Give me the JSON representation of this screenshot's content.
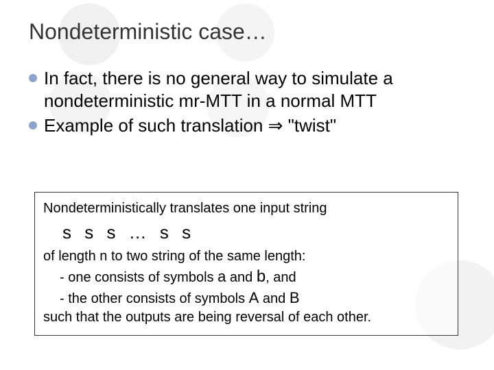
{
  "colors": {
    "background": "#ffffff",
    "deco_circle": "#f2f2f2",
    "bullet": "#8fa4cc",
    "title_text": "#333333",
    "body_text": "#000000",
    "box_border": "#333333"
  },
  "title": "Nondeterministic case…",
  "bullets": [
    "In fact, there is no general way to simulate a nondeterministic mr-MTT in a normal MTT",
    "Example of such translation ⇒ \"twist\""
  ],
  "box": {
    "line1": "Nondeterministically translates one input string",
    "string": "s s s … s s",
    "line2_pre": "of length n to two string of the same length:",
    "dash1_pre": "- one consists of symbols ",
    "sym_a": "a",
    "dash1_mid": " and ",
    "sym_b": "b",
    "dash1_post": ", and",
    "dash2_pre": "- the other consists of symbols ",
    "sym_A": "A",
    "dash2_mid": " and ",
    "sym_B": "B",
    "line3": "such that the outputs are being reversal of each other."
  }
}
